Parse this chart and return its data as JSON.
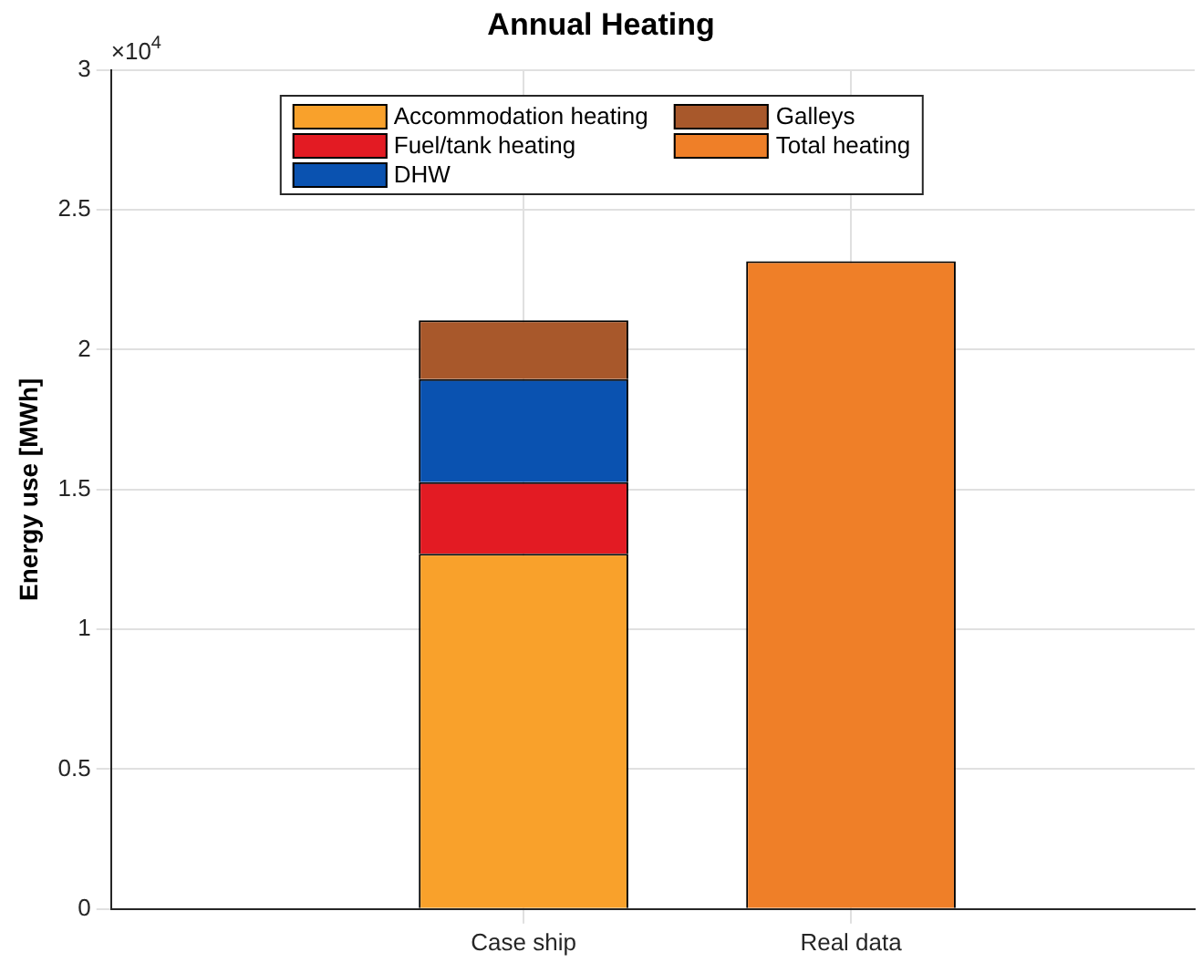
{
  "chart_data": {
    "type": "bar",
    "title": "Annual Heating",
    "ylabel": "Energy use [MWh]",
    "categories": [
      "Case ship",
      "Real data"
    ],
    "series": [
      {
        "name": "Accommodation heating",
        "color": "#f9a12b",
        "values": [
          1.27,
          null
        ]
      },
      {
        "name": "Fuel/tank heating",
        "color": "#e31b23",
        "values": [
          0.256,
          null
        ]
      },
      {
        "name": "DHW",
        "color": "#0a52b0",
        "values": [
          0.369,
          null
        ]
      },
      {
        "name": "Galleys",
        "color": "#a8582b",
        "values": [
          0.21,
          null
        ]
      },
      {
        "name": "Total heating",
        "color": "#ef7f28",
        "values": [
          null,
          2.316
        ]
      }
    ],
    "stacked": true,
    "ylim": [
      0,
      3
    ],
    "yticks": [
      0,
      0.5,
      1,
      1.5,
      2,
      2.5,
      3
    ],
    "annotations": [
      "×10$^{4}$"
    ],
    "grid": true,
    "legend": "top"
  }
}
